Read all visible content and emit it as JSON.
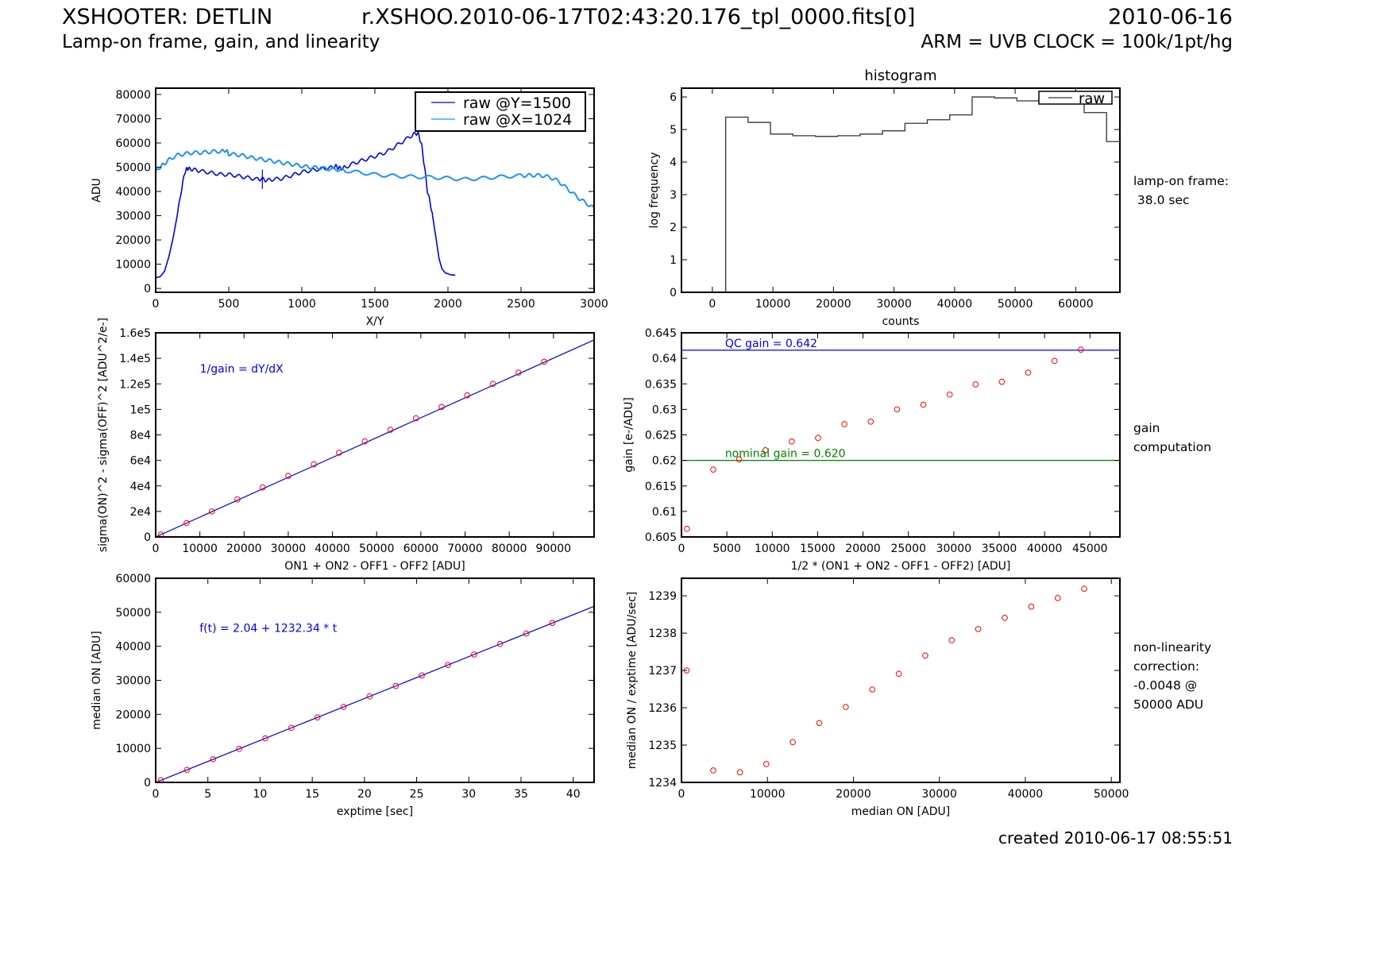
{
  "header": {
    "title": "XSHOOTER: DETLIN",
    "filename": "r.XSHOO.2010-06-17T02:43:20.176_tpl_0000.fits[0]",
    "date": "2010-06-16",
    "subtitle": "Lamp-on frame, gain, and linearity",
    "arm_clock": "ARM = UVB CLOCK = 100k/1pt/hg"
  },
  "side_notes": {
    "lamp_on": [
      "lamp-on frame:",
      " 38.0 sec"
    ],
    "gain": [
      "gain",
      "computation"
    ],
    "nonlin": [
      "non-linearity",
      "correction:",
      "-0.0048 @",
      "50000 ADU"
    ]
  },
  "footer": {
    "created": "created 2010-06-17 08:55:51"
  },
  "colors": {
    "dark_blue": "#0000ee",
    "light_blue": "#1e90ff",
    "red": "#ff0000",
    "green": "#008000",
    "hist_line": "#333333"
  },
  "chart_data": [
    {
      "id": "profiles",
      "type": "line",
      "title": "",
      "xlabel": "X/Y",
      "ylabel": "ADU",
      "xlim": [
        0,
        3000
      ],
      "ylim": [
        -1600,
        82600
      ],
      "xticks": [
        0,
        500,
        1000,
        1500,
        2000,
        2500,
        3000
      ],
      "yticks": [
        0,
        10000,
        20000,
        30000,
        40000,
        50000,
        60000,
        70000,
        80000
      ],
      "legend": "top-right",
      "series": [
        {
          "name": "raw @Y=1500",
          "color": "#0000ee",
          "x": [
            0,
            30,
            60,
            90,
            120,
            150,
            180,
            200,
            215,
            230,
            260,
            300,
            350,
            400,
            450,
            500,
            550,
            600,
            650,
            700,
            730,
            760,
            800,
            850,
            900,
            950,
            1000,
            1050,
            1100,
            1150,
            1200,
            1230,
            1250,
            1270,
            1300,
            1350,
            1400,
            1450,
            1500,
            1550,
            1600,
            1650,
            1700,
            1750,
            1780,
            1800,
            1820,
            1840,
            1860,
            1880,
            1900,
            1920,
            1940,
            1960,
            1980,
            2000,
            2020,
            2050
          ],
          "y": [
            4500,
            4800,
            7000,
            13000,
            21000,
            31000,
            42000,
            48000,
            49500,
            49300,
            49000,
            48500,
            48000,
            47500,
            47000,
            47000,
            46500,
            46000,
            45500,
            45000,
            45200,
            44500,
            45000,
            45200,
            46000,
            47000,
            48000,
            48500,
            49000,
            49500,
            49800,
            50500,
            49800,
            49500,
            50000,
            51500,
            52500,
            53500,
            54500,
            55500,
            57000,
            59000,
            61000,
            63000,
            64000,
            63500,
            59000,
            50000,
            40000,
            35000,
            28000,
            20000,
            12000,
            8000,
            6500,
            6000,
            5600,
            5500
          ]
        },
        {
          "name": "raw @X=1024",
          "color": "#1e90ff",
          "x": [
            0,
            30,
            60,
            100,
            150,
            200,
            250,
            300,
            350,
            400,
            450,
            480,
            500,
            550,
            600,
            650,
            700,
            750,
            800,
            850,
            900,
            950,
            1000,
            1050,
            1100,
            1150,
            1200,
            1250,
            1300,
            1400,
            1500,
            1600,
            1700,
            1800,
            1900,
            2000,
            2100,
            2200,
            2300,
            2400,
            2500,
            2550,
            2600,
            2650,
            2700,
            2750,
            2800,
            2850,
            2900,
            2950,
            3000
          ],
          "y": [
            48000,
            50000,
            51500,
            53500,
            55000,
            55500,
            56000,
            56000,
            56200,
            56500,
            56500,
            57000,
            55500,
            55200,
            54800,
            54000,
            53500,
            53000,
            52500,
            52000,
            51500,
            51000,
            50500,
            50000,
            49800,
            49500,
            49200,
            49000,
            48500,
            47800,
            47000,
            46500,
            46200,
            46000,
            45800,
            45500,
            45000,
            45300,
            45800,
            46200,
            46500,
            46600,
            46700,
            46500,
            45800,
            44500,
            42000,
            39500,
            37000,
            35000,
            33000
          ]
        }
      ],
      "annotations": []
    },
    {
      "id": "histogram",
      "type": "bar",
      "title": "histogram",
      "xlabel": "counts",
      "ylabel": "log frequency",
      "xlim": [
        -5100,
        67300
      ],
      "ylim": [
        0,
        6.27
      ],
      "xticks": [
        0,
        10000,
        20000,
        30000,
        40000,
        50000,
        60000
      ],
      "yticks": [
        0,
        1,
        2,
        3,
        4,
        5,
        6
      ],
      "legend": "top-right",
      "series": [
        {
          "name": "raw",
          "color": "#333333",
          "bin_edges": [
            2200,
            5900,
            9600,
            13300,
            17000,
            20700,
            24400,
            28100,
            31800,
            35500,
            39200,
            42900,
            46600,
            50300,
            54000,
            57700,
            61400,
            65100,
            67300
          ],
          "values": [
            5.38,
            5.22,
            4.86,
            4.81,
            4.79,
            4.81,
            4.86,
            4.96,
            5.19,
            5.3,
            5.45,
            6.0,
            5.97,
            5.88,
            5.95,
            5.97,
            5.52,
            4.63
          ]
        }
      ]
    },
    {
      "id": "variance",
      "type": "scatter",
      "title": "",
      "xlabel": "ON1 + ON2 - OFF1 - OFF2 [ADU]",
      "ylabel": "sigma(ON)^2 - sigma(OFF)^2 [ADU^2/e-]",
      "xlim": [
        0,
        99200
      ],
      "ylim": [
        0,
        160000
      ],
      "xticks": [
        0,
        10000,
        20000,
        30000,
        40000,
        50000,
        60000,
        70000,
        80000,
        90000
      ],
      "ytick_labels": [
        "0",
        "2e4",
        "4e4",
        "6e4",
        "8e4",
        "1e5",
        "1.2e5",
        "1.4e5",
        "1.6e5"
      ],
      "yticks": [
        0,
        20000,
        40000,
        60000,
        80000,
        100000,
        120000,
        140000,
        160000
      ],
      "fit_line": {
        "color": "#0000ee",
        "slope": 1.557,
        "intercept": 0
      },
      "points": {
        "color": "#ff0000",
        "x": [
          1200,
          7000,
          12700,
          18500,
          24200,
          30000,
          35800,
          41500,
          47300,
          53100,
          58900,
          64700,
          70500,
          76300,
          82100,
          87900
        ],
        "y": [
          1800,
          10900,
          20000,
          29400,
          38800,
          47900,
          56900,
          66000,
          74900,
          84000,
          93000,
          101900,
          111000,
          120000,
          128800,
          137300
        ]
      },
      "annotations": [
        {
          "text": "1/gain = dY/dX",
          "color": "#0000ee",
          "x": 10000,
          "y": 129000
        }
      ]
    },
    {
      "id": "gain",
      "type": "scatter",
      "title": "",
      "xlabel": "1/2 * (ON1 + ON2 - OFF1 - OFF2) [ADU]",
      "ylabel": "gain [e-/ADU]",
      "xlim": [
        0,
        48300
      ],
      "ylim": [
        0.605,
        0.645
      ],
      "xticks": [
        0,
        5000,
        10000,
        15000,
        20000,
        25000,
        30000,
        35000,
        40000,
        45000
      ],
      "yticks": [
        0.605,
        0.61,
        0.615,
        0.62,
        0.625,
        0.63,
        0.635,
        0.64,
        0.645
      ],
      "hlines": [
        {
          "y": 0.6416,
          "color": "#0000ee",
          "label": "QC gain = 0.642"
        },
        {
          "y": 0.62,
          "color": "#008000",
          "label": "nominal gain = 0.620"
        }
      ],
      "points": {
        "color": "#ff0000",
        "x": [
          600,
          3500,
          6350,
          9250,
          12150,
          15050,
          17950,
          20850,
          23750,
          26650,
          29550,
          32400,
          35300,
          38200,
          41100,
          44000
        ],
        "y": [
          0.6066,
          0.6182,
          0.6202,
          0.622,
          0.6237,
          0.6244,
          0.6271,
          0.6276,
          0.63,
          0.6309,
          0.6329,
          0.6349,
          0.6354,
          0.6372,
          0.6395,
          0.6417
        ]
      }
    },
    {
      "id": "linearity",
      "type": "scatter",
      "title": "",
      "xlabel": "exptime [sec]",
      "ylabel": "median ON [ADU]",
      "xlim": [
        0,
        42
      ],
      "ylim": [
        0,
        60000
      ],
      "xticks": [
        0,
        5,
        10,
        15,
        20,
        25,
        30,
        35,
        40
      ],
      "yticks": [
        0,
        10000,
        20000,
        30000,
        40000,
        50000,
        60000
      ],
      "fit_line": {
        "color": "#0000ee",
        "slope": 1232.34,
        "intercept": 2.04
      },
      "points": {
        "color": "#ff0000",
        "x": [
          0.5,
          3.0,
          5.5,
          8.0,
          10.5,
          13.0,
          15.5,
          18.0,
          20.5,
          23.0,
          25.5,
          28.0,
          30.5,
          33.0,
          35.5,
          38.0
        ],
        "y": [
          620,
          3700,
          6800,
          9870,
          12950,
          16030,
          19110,
          22200,
          25280,
          28360,
          31440,
          34520,
          37610,
          40690,
          43770,
          46850
        ]
      },
      "annotations": [
        {
          "text": "f(t) =   2.04 + 1232.34 * t",
          "color": "#0000ee",
          "x": 4.2,
          "y": 44200
        }
      ]
    },
    {
      "id": "nonlinearity",
      "type": "scatter",
      "title": "",
      "xlabel": "median ON [ADU]",
      "ylabel": "median ON / exptime [ADU/sec]",
      "xlim": [
        0,
        51000
      ],
      "ylim": [
        1234,
        1239.47
      ],
      "xticks": [
        0,
        10000,
        20000,
        30000,
        40000,
        50000
      ],
      "yticks": [
        1234,
        1235,
        1236,
        1237,
        1238,
        1239
      ],
      "points": {
        "color": "#ff0000",
        "x": [
          600,
          3700,
          6800,
          9870,
          12950,
          16030,
          19110,
          22200,
          25280,
          28360,
          31440,
          34520,
          37610,
          40690,
          43770,
          46850
        ],
        "y": [
          1237.0,
          1234.32,
          1234.27,
          1234.49,
          1235.08,
          1235.59,
          1236.02,
          1236.49,
          1236.91,
          1237.4,
          1237.81,
          1238.11,
          1238.41,
          1238.71,
          1238.94,
          1239.19
        ]
      }
    }
  ]
}
